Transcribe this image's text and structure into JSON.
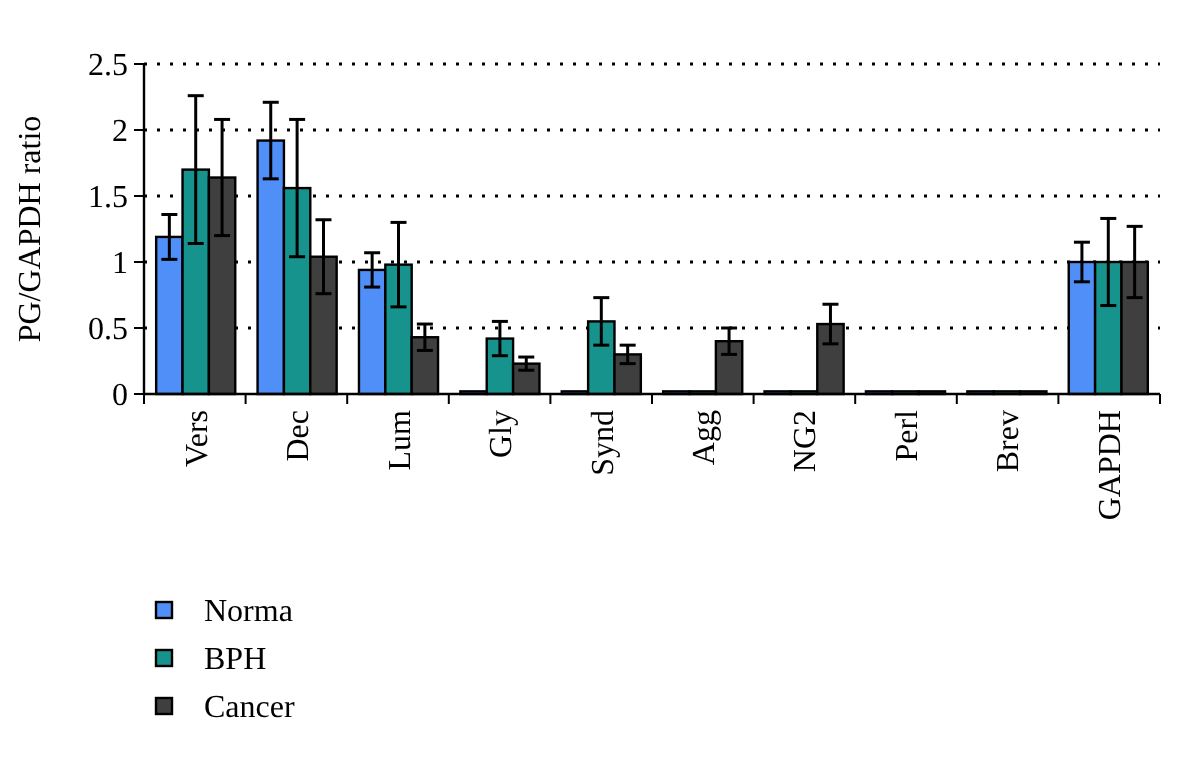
{
  "chart_data": {
    "type": "bar",
    "ylabel": "PG/GAPDH ratio",
    "categories": [
      "Vers",
      "Dec",
      "Lum",
      "Gly",
      "Synd",
      "Agg",
      "NG2",
      "Perl",
      "Brev",
      "GAPDH"
    ],
    "series": [
      {
        "name": "Norma",
        "color": "#4f8ff7",
        "values": [
          1.19,
          1.92,
          0.94,
          0.02,
          0.02,
          0.02,
          0.02,
          0.02,
          0.02,
          1
        ],
        "errors": [
          0.17,
          0.29,
          0.13,
          null,
          null,
          null,
          null,
          null,
          null,
          0.15
        ]
      },
      {
        "name": "BPH",
        "color": "#17938e",
        "values": [
          1.7,
          1.56,
          0.98,
          0.42,
          0.55,
          0.02,
          0.02,
          0.02,
          0.02,
          1
        ],
        "errors": [
          0.56,
          0.52,
          0.32,
          0.13,
          0.18,
          null,
          null,
          null,
          null,
          0.33
        ]
      },
      {
        "name": "Cancer",
        "color": "#3f3f3f",
        "values": [
          1.64,
          1.04,
          0.43,
          0.23,
          0.3,
          0.4,
          0.53,
          0.02,
          0.02,
          1
        ],
        "errors": [
          0.44,
          0.28,
          0.1,
          0.05,
          0.07,
          0.1,
          0.15,
          null,
          null,
          0.27
        ]
      }
    ],
    "ylim": [
      0,
      2.5
    ],
    "yticks": [
      0,
      0.5,
      1,
      1.5,
      2,
      2.5
    ],
    "grid": "y",
    "legend": "bottom left"
  }
}
